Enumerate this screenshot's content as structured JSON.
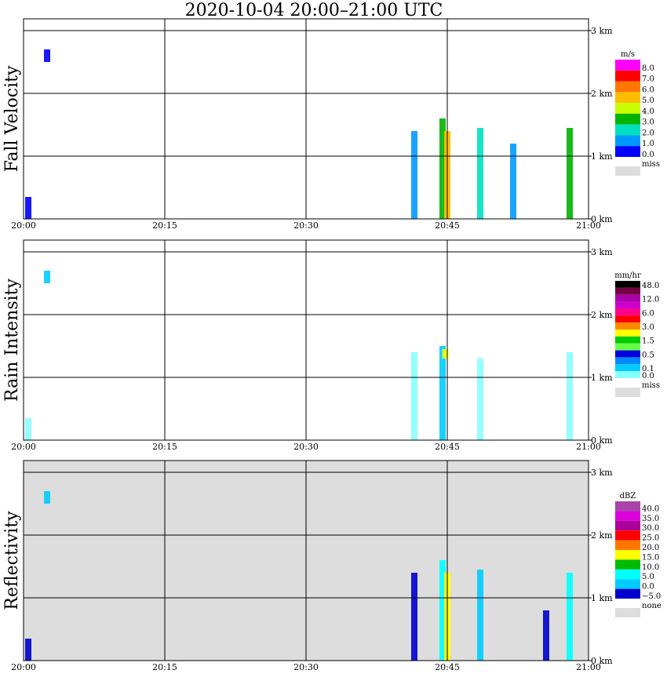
{
  "title": "2020-10-04   20:00–21:00 UTC",
  "x_ticks": [
    "20:00",
    "20:15",
    "20:30",
    "20:45",
    "21:00"
  ],
  "chart_data": [
    {
      "type": "heatmap",
      "ylabel": "Fall Velocity",
      "y_ticks": [
        "0 km",
        "1 km",
        "2 km",
        "3 km"
      ],
      "xlim": [
        "20:00",
        "21:00"
      ],
      "grid": true,
      "background": "#ffffff",
      "colorbar": {
        "unit": "m/s",
        "labels": [
          "8.0",
          "7.0",
          "6.0",
          "5.0",
          "4.0",
          "3.0",
          "2.0",
          "1.0",
          "0.0"
        ],
        "colors": [
          "#ff00ff",
          "#ff0000",
          "#ff7700",
          "#ffbb00",
          "#c8ff00",
          "#00b400",
          "#00e0c0",
          "#0099ff",
          "#0000ff"
        ],
        "miss_label": "miss",
        "miss_color": "#dddddd"
      },
      "echoes": [
        {
          "t": 0.5,
          "h0": 0,
          "h1": 0.35,
          "color": "#0000ff"
        },
        {
          "t": 2.5,
          "h0": 2.5,
          "h1": 2.7,
          "color": "#0000ff"
        },
        {
          "t": 41.5,
          "h0": 0,
          "h1": 1.4,
          "color": "#0099ff"
        },
        {
          "t": 44.5,
          "h0": 0,
          "h1": 1.6,
          "color": "#00b400"
        },
        {
          "t": 45,
          "h0": 0,
          "h1": 1.4,
          "color": "#ffbb00"
        },
        {
          "t": 48.5,
          "h0": 0,
          "h1": 1.45,
          "color": "#00e0c0"
        },
        {
          "t": 52,
          "h0": 0,
          "h1": 1.2,
          "color": "#0099ff"
        },
        {
          "t": 58,
          "h0": 0,
          "h1": 1.45,
          "color": "#00b400"
        }
      ]
    },
    {
      "type": "heatmap",
      "ylabel": "Rain Intensity",
      "y_ticks": [
        "0 km",
        "1 km",
        "2 km",
        "3 km"
      ],
      "xlim": [
        "20:00",
        "21:00"
      ],
      "grid": true,
      "background": "#ffffff",
      "colorbar": {
        "unit": "mm/hr",
        "labels": [
          "48.0",
          "",
          "12.0",
          "",
          "6.0",
          "",
          "3.0",
          "",
          "1.5",
          "",
          "0.5",
          "",
          "0.1",
          "0.0"
        ],
        "colors": [
          "#000000",
          "#770044",
          "#aa00aa",
          "#cc00cc",
          "#ff0088",
          "#ff0000",
          "#ff8800",
          "#ffff00",
          "#00cc00",
          "#66ff44",
          "#0000dd",
          "#0088ff",
          "#00ccff",
          "#88ffff"
        ],
        "miss_label": "miss",
        "miss_color": "#dddddd"
      },
      "echoes": [
        {
          "t": 0.5,
          "h0": 0,
          "h1": 0.35,
          "color": "#88ffff"
        },
        {
          "t": 2.5,
          "h0": 2.5,
          "h1": 2.7,
          "color": "#00ccff"
        },
        {
          "t": 41.5,
          "h0": 0,
          "h1": 1.4,
          "color": "#88ffff"
        },
        {
          "t": 44.5,
          "h0": 0,
          "h1": 1.5,
          "color": "#00ccff"
        },
        {
          "t": 44.8,
          "h0": 1.3,
          "h1": 1.45,
          "color": "#ffff00"
        },
        {
          "t": 48.5,
          "h0": 0,
          "h1": 1.3,
          "color": "#88ffff"
        },
        {
          "t": 58,
          "h0": 0,
          "h1": 1.4,
          "color": "#88ffff"
        }
      ]
    },
    {
      "type": "heatmap",
      "ylabel": "Reflectivity",
      "y_ticks": [
        "0 km",
        "1 km",
        "2 km",
        "3 km"
      ],
      "xlim": [
        "20:00",
        "21:00"
      ],
      "grid": true,
      "background": "#dddddd",
      "colorbar": {
        "unit": "dBZ",
        "labels": [
          "40.0",
          "35.0",
          "30.0",
          "25.0",
          "20.0",
          "15.0",
          "10.0",
          "5.0",
          "0.0",
          "−5.0"
        ],
        "colors": [
          "#aa44aa",
          "#dd00dd",
          "#aa0099",
          "#ff0000",
          "#ff7700",
          "#ffff00",
          "#00bb00",
          "#00ffff",
          "#00ccff",
          "#0000cc"
        ],
        "miss_label": "none",
        "miss_color": "#dddddd"
      },
      "echoes": [
        {
          "t": 0.5,
          "h0": 0,
          "h1": 0.35,
          "color": "#0000cc"
        },
        {
          "t": 2.5,
          "h0": 2.5,
          "h1": 2.7,
          "color": "#00ccff"
        },
        {
          "t": 41.5,
          "h0": 0,
          "h1": 1.4,
          "color": "#0000cc"
        },
        {
          "t": 44.5,
          "h0": 0,
          "h1": 1.6,
          "color": "#00ffff"
        },
        {
          "t": 45,
          "h0": 0,
          "h1": 1.4,
          "color": "#ffff00"
        },
        {
          "t": 48.5,
          "h0": 0,
          "h1": 1.45,
          "color": "#00ccff"
        },
        {
          "t": 55.5,
          "h0": 0,
          "h1": 0.8,
          "color": "#0000cc"
        },
        {
          "t": 58,
          "h0": 0,
          "h1": 1.4,
          "color": "#00ffff"
        }
      ]
    }
  ]
}
